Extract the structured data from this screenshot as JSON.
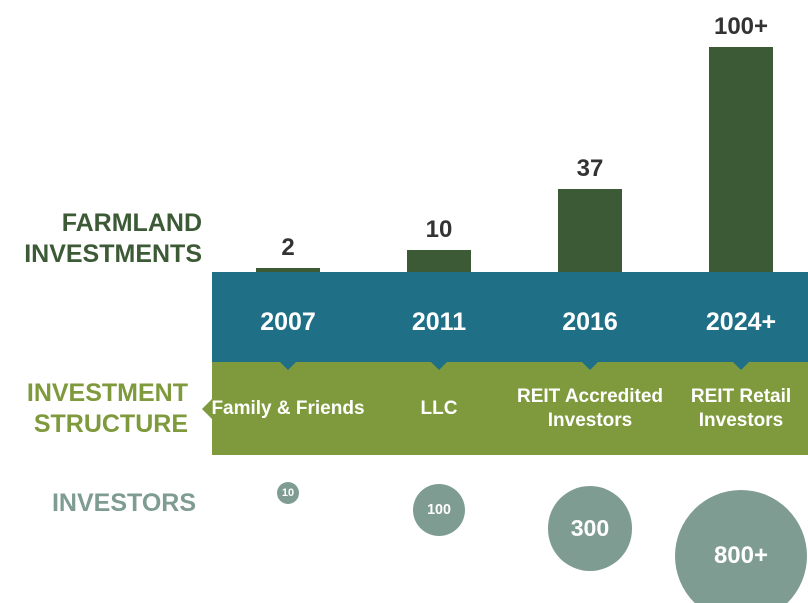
{
  "chart_data": {
    "type": "bar",
    "categories": [
      "2007",
      "2011",
      "2016",
      "2024+"
    ],
    "series": [
      {
        "name": "FARMLAND INVESTMENTS",
        "color": "#3d5a36",
        "values": [
          2,
          10,
          37,
          100
        ],
        "value_labels": [
          "2",
          "10",
          "37",
          "100+"
        ]
      }
    ],
    "ylim": [
      0,
      100
    ],
    "structure": {
      "name": "INVESTMENT STRUCTURE",
      "color": "#7f9a3c",
      "labels": [
        "Family & Friends",
        "LLC",
        "REIT Accredited Investors",
        "REIT Retail Investors"
      ]
    },
    "investors": {
      "name": "INVESTORS",
      "color": "#7f9c93",
      "values": [
        10,
        100,
        300,
        800
      ],
      "value_labels": [
        "10",
        "100",
        "300",
        "800+"
      ]
    },
    "band_color": "#1f6f86"
  }
}
